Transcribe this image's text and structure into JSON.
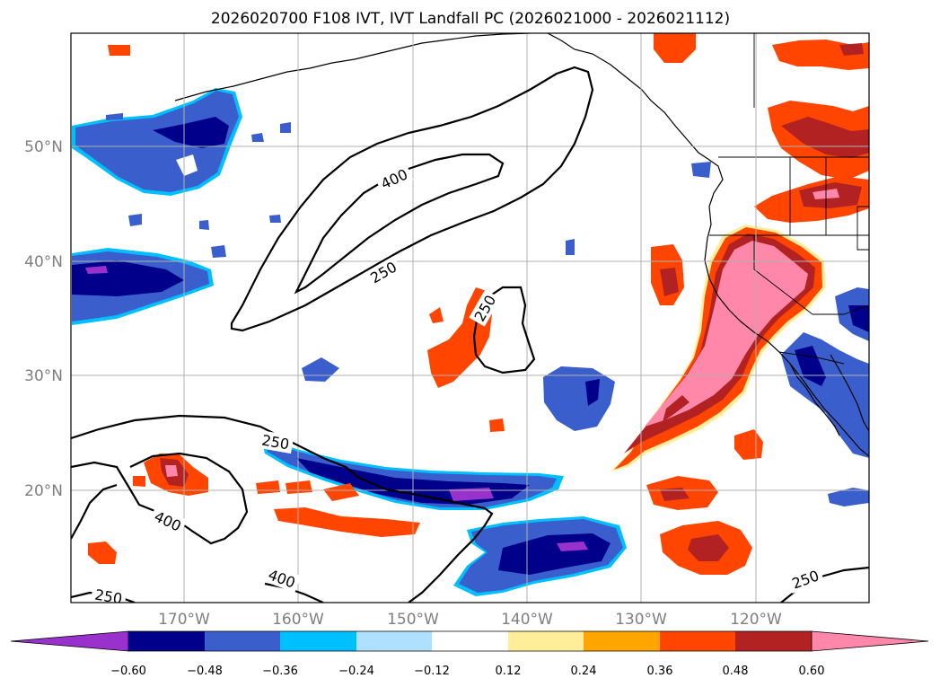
{
  "title": "2026020700 F108 IVT, IVT Landfall PC (2026021000 - 2026021112)",
  "axes": {
    "lat_labels": [
      "50°N",
      "40°N",
      "30°N",
      "20°N"
    ],
    "lon_labels": [
      "170°W",
      "160°W",
      "150°W",
      "140°W",
      "130°W",
      "120°W"
    ]
  },
  "colorbar": {
    "tick_labels": [
      "−0.60",
      "−0.48",
      "−0.36",
      "−0.24",
      "−0.12",
      "0.12",
      "0.24",
      "0.36",
      "0.48",
      "0.60"
    ],
    "colors": [
      "#9932cc",
      "#00008b",
      "#3a5fcd",
      "#00bfff",
      "#afe1ff",
      "#ffffff",
      "#ffee99",
      "#ffa500",
      "#ff4500",
      "#b22222",
      "#ff88aa"
    ]
  },
  "contours": {
    "labels": [
      "400",
      "250",
      "250",
      "250",
      "400",
      "400",
      "250",
      "250"
    ]
  },
  "chart_data": {
    "type": "heatmap",
    "title": "2026020700 F108 IVT, IVT Landfall PC (2026021000 - 2026021112)",
    "xlabel": "",
    "ylabel": "",
    "lon_ticks": [
      "170°W",
      "160°W",
      "150°W",
      "140°W",
      "130°W",
      "120°W"
    ],
    "lat_ticks": [
      "50°N",
      "40°N",
      "30°N",
      "20°N"
    ],
    "colorbar_levels": [
      -0.6,
      -0.48,
      -0.36,
      -0.24,
      -0.12,
      0.12,
      0.24,
      0.36,
      0.48,
      0.6
    ],
    "contour_levels": [
      250,
      400
    ],
    "grid": true
  }
}
